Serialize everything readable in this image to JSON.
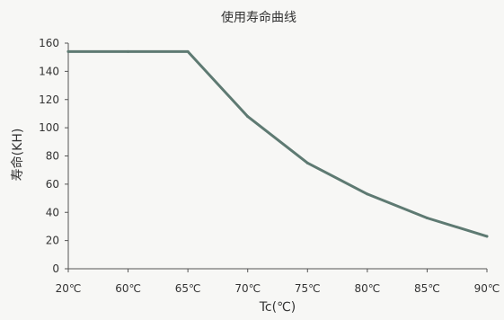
{
  "chart_data": {
    "type": "line",
    "title": "使用寿命曲线",
    "xlabel": "Tc(℃)",
    "ylabel": "寿命(KH)",
    "x_tick_labels": [
      "20℃",
      "60℃",
      "65℃",
      "70℃",
      "75℃",
      "80℃",
      "85℃",
      "90℃"
    ],
    "y_ticks": [
      0,
      20,
      40,
      60,
      80,
      100,
      120,
      140,
      160
    ],
    "ylim": [
      0,
      160
    ],
    "grid": false,
    "series": [
      {
        "x_labels": [
          "20℃",
          "60℃",
          "65℃",
          "70℃",
          "75℃",
          "80℃",
          "85℃",
          "90℃"
        ],
        "values": [
          154,
          154,
          154,
          108,
          75,
          53,
          36,
          23
        ]
      }
    ]
  },
  "colors": {
    "line": "#5e7a72",
    "axis": "#555555",
    "background": "#f7f7f5"
  }
}
